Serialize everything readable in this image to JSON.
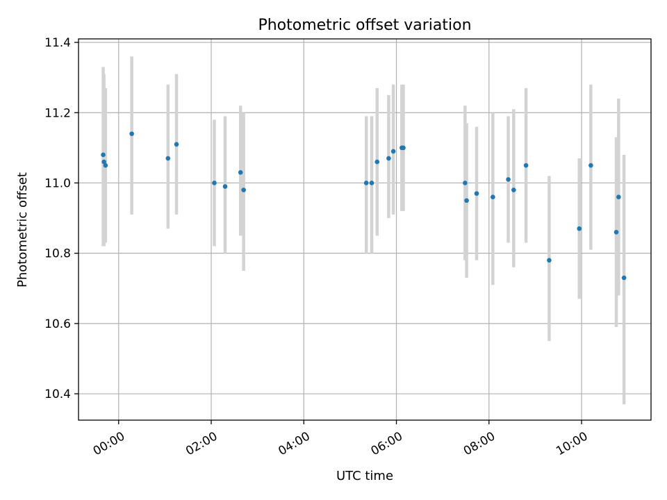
{
  "chart_data": {
    "type": "scatter",
    "title": "Photometric offset variation",
    "xlabel": "UTC time",
    "ylabel": "Photometric offset",
    "xlim": [
      "-00:52",
      "11:30"
    ],
    "ylim": [
      10.325,
      11.41
    ],
    "x_ticks": [
      "00:00",
      "02:00",
      "04:00",
      "06:00",
      "08:00",
      "10:00"
    ],
    "y_ticks": [
      10.4,
      10.6,
      10.8,
      11.0,
      11.2,
      11.4
    ],
    "y_tick_labels": [
      "10.4",
      "10.6",
      "10.8",
      "11.0",
      "11.2",
      "11.4"
    ],
    "grid": true,
    "marker_color": "#1f77b4",
    "errorbar_color": "#d3d3d3",
    "points": [
      {
        "time": "-00:20",
        "y": 11.08,
        "ylow": 10.82,
        "yhigh": 11.33
      },
      {
        "time": "-00:19",
        "y": 11.06,
        "ylow": 10.82,
        "yhigh": 11.31
      },
      {
        "time": "-00:17",
        "y": 11.05,
        "ylow": 10.83,
        "yhigh": 11.27
      },
      {
        "time": "00:17",
        "y": 11.14,
        "ylow": 10.91,
        "yhigh": 11.36
      },
      {
        "time": "01:04",
        "y": 11.07,
        "ylow": 10.87,
        "yhigh": 11.28
      },
      {
        "time": "01:15",
        "y": 11.11,
        "ylow": 10.91,
        "yhigh": 11.31
      },
      {
        "time": "02:04",
        "y": 11.0,
        "ylow": 10.82,
        "yhigh": 11.18
      },
      {
        "time": "02:18",
        "y": 10.99,
        "ylow": 10.8,
        "yhigh": 11.19
      },
      {
        "time": "02:38",
        "y": 11.03,
        "ylow": 10.85,
        "yhigh": 11.22
      },
      {
        "time": "02:42",
        "y": 10.98,
        "ylow": 10.75,
        "yhigh": 11.2
      },
      {
        "time": "05:21",
        "y": 11.0,
        "ylow": 10.8,
        "yhigh": 11.19
      },
      {
        "time": "05:28",
        "y": 11.0,
        "ylow": 10.8,
        "yhigh": 11.19
      },
      {
        "time": "05:35",
        "y": 11.06,
        "ylow": 10.85,
        "yhigh": 11.27
      },
      {
        "time": "05:50",
        "y": 11.07,
        "ylow": 10.9,
        "yhigh": 11.25
      },
      {
        "time": "05:56",
        "y": 11.09,
        "ylow": 10.91,
        "yhigh": 11.28
      },
      {
        "time": "06:07",
        "y": 11.1,
        "ylow": 10.92,
        "yhigh": 11.28
      },
      {
        "time": "06:09",
        "y": 11.1,
        "ylow": 10.92,
        "yhigh": 11.28
      },
      {
        "time": "07:29",
        "y": 11.0,
        "ylow": 10.78,
        "yhigh": 11.22
      },
      {
        "time": "07:31",
        "y": 10.95,
        "ylow": 10.73,
        "yhigh": 11.17
      },
      {
        "time": "07:44",
        "y": 10.97,
        "ylow": 10.78,
        "yhigh": 11.16
      },
      {
        "time": "08:05",
        "y": 10.96,
        "ylow": 10.71,
        "yhigh": 11.2
      },
      {
        "time": "08:25",
        "y": 11.01,
        "ylow": 10.83,
        "yhigh": 11.19
      },
      {
        "time": "08:32",
        "y": 10.98,
        "ylow": 10.76,
        "yhigh": 11.21
      },
      {
        "time": "08:48",
        "y": 11.05,
        "ylow": 10.83,
        "yhigh": 11.27
      },
      {
        "time": "09:18",
        "y": 10.78,
        "ylow": 10.55,
        "yhigh": 11.02
      },
      {
        "time": "09:57",
        "y": 10.87,
        "ylow": 10.67,
        "yhigh": 11.07
      },
      {
        "time": "10:12",
        "y": 11.05,
        "ylow": 10.81,
        "yhigh": 11.28
      },
      {
        "time": "10:45",
        "y": 10.86,
        "ylow": 10.59,
        "yhigh": 11.13
      },
      {
        "time": "10:48",
        "y": 10.96,
        "ylow": 10.68,
        "yhigh": 11.24
      },
      {
        "time": "10:55",
        "y": 10.73,
        "ylow": 10.37,
        "yhigh": 11.08
      }
    ]
  }
}
